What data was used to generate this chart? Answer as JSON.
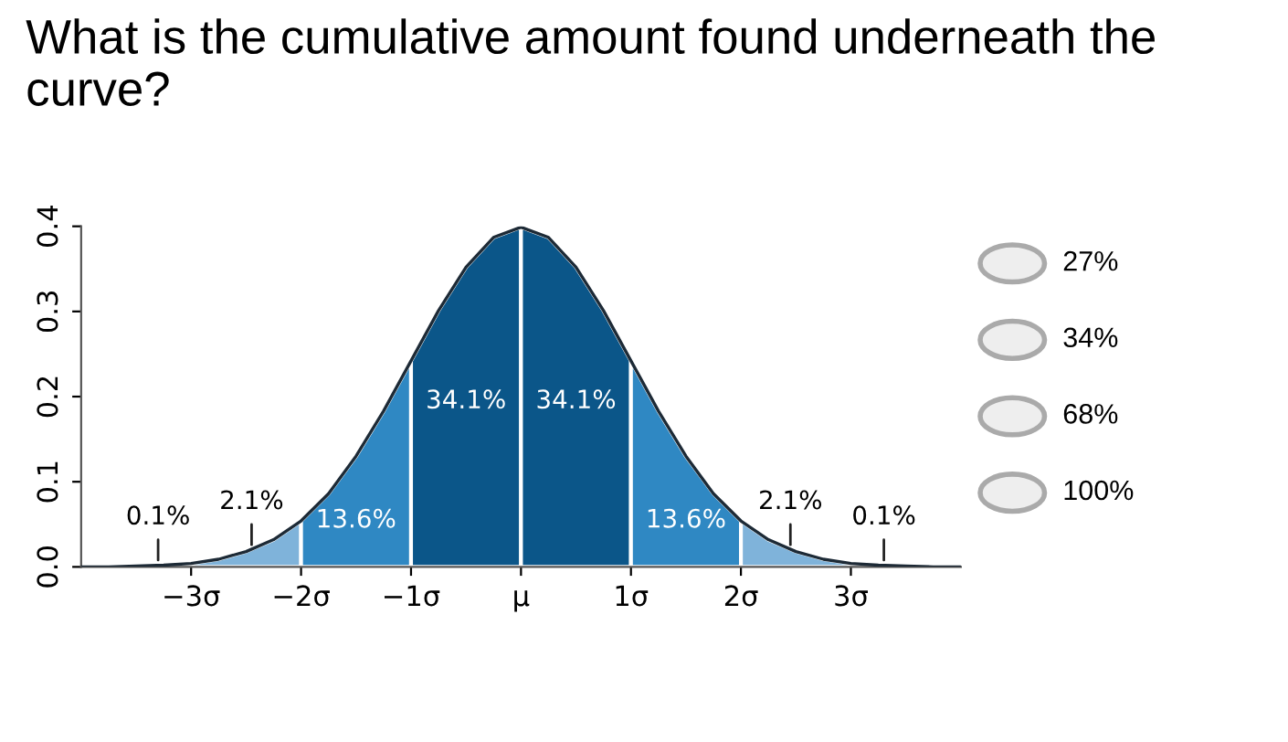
{
  "chart_data": {
    "type": "area",
    "title": "What is the cumulative amount found underneath the curve?",
    "xlim": [
      -4,
      4
    ],
    "ylim": [
      0,
      0.4
    ],
    "xticks": [
      {
        "value": -3,
        "label": "−3σ"
      },
      {
        "value": -2,
        "label": "−2σ"
      },
      {
        "value": -1,
        "label": "−1σ"
      },
      {
        "value": 0,
        "label": "μ"
      },
      {
        "value": 1,
        "label": "1σ"
      },
      {
        "value": 2,
        "label": "2σ"
      },
      {
        "value": 3,
        "label": "3σ"
      }
    ],
    "yticks": [
      {
        "value": 0,
        "label": "0.0"
      },
      {
        "value": 0.1,
        "label": "0.1"
      },
      {
        "value": 0.2,
        "label": "0.2"
      },
      {
        "value": 0.3,
        "label": "0.3"
      },
      {
        "value": 0.4,
        "label": "0.4"
      }
    ],
    "legend": false,
    "series": [
      {
        "color": "#7fb3da",
        "x": [
          -3,
          -2.75,
          -2.5,
          -2.25,
          -2
        ],
        "values": [
          0.004,
          0.009,
          0.018,
          0.032,
          0.054
        ]
      },
      {
        "name": "13.6%",
        "color": "#2f88c3",
        "x": [
          -2,
          -1.75,
          -1.5,
          -1.25,
          -1
        ],
        "values": [
          0.054,
          0.086,
          0.13,
          0.183,
          0.242
        ]
      },
      {
        "name": "34.1%",
        "color": "#0b5689",
        "x": [
          -1,
          -0.75,
          -0.5,
          -0.25,
          0
        ],
        "values": [
          0.242,
          0.301,
          0.352,
          0.387,
          0.399
        ]
      },
      {
        "name": "34.1%",
        "color": "#0b5689",
        "x": [
          0,
          0.25,
          0.5,
          0.75,
          1
        ],
        "values": [
          0.399,
          0.387,
          0.352,
          0.301,
          0.242
        ]
      },
      {
        "name": "13.6%",
        "color": "#2f88c3",
        "x": [
          1,
          1.25,
          1.5,
          1.75,
          2
        ],
        "values": [
          0.242,
          0.183,
          0.13,
          0.086,
          0.054
        ]
      },
      {
        "color": "#7fb3da",
        "x": [
          2,
          2.25,
          2.5,
          2.75,
          3
        ],
        "values": [
          0.054,
          0.032,
          0.018,
          0.009,
          0.004
        ]
      },
      {
        "type": "line",
        "color": "#1d2a36",
        "x": [
          -4,
          -3.75,
          -3.5,
          -3.25,
          -3,
          -2.75,
          -2.5,
          -2.25,
          -2,
          -1.75,
          -1.5,
          -1.25,
          -1,
          -0.75,
          -0.5,
          -0.25,
          0,
          0.25,
          0.5,
          0.75,
          1,
          1.25,
          1.5,
          1.75,
          2,
          2.25,
          2.5,
          2.75,
          3,
          3.25,
          3.5,
          3.75,
          4
        ],
        "values": [
          0,
          0,
          0.001,
          0.002,
          0.004,
          0.009,
          0.018,
          0.032,
          0.054,
          0.086,
          0.13,
          0.183,
          0.242,
          0.301,
          0.352,
          0.387,
          0.399,
          0.387,
          0.352,
          0.301,
          0.242,
          0.183,
          0.13,
          0.086,
          0.054,
          0.032,
          0.018,
          0.009,
          0.004,
          0.002,
          0.001,
          0,
          0
        ]
      }
    ],
    "annotations": [
      {
        "text": "0.1%",
        "x": -3.3,
        "y": 0.002
      },
      {
        "text": "2.1%",
        "x": -2.45,
        "y": 0.02
      },
      {
        "text": "2.1%",
        "x": 2.45,
        "y": 0.02
      },
      {
        "text": "0.1%",
        "x": 3.3,
        "y": 0.002
      },
      "27%",
      "34%",
      "68%",
      "100%"
    ]
  }
}
